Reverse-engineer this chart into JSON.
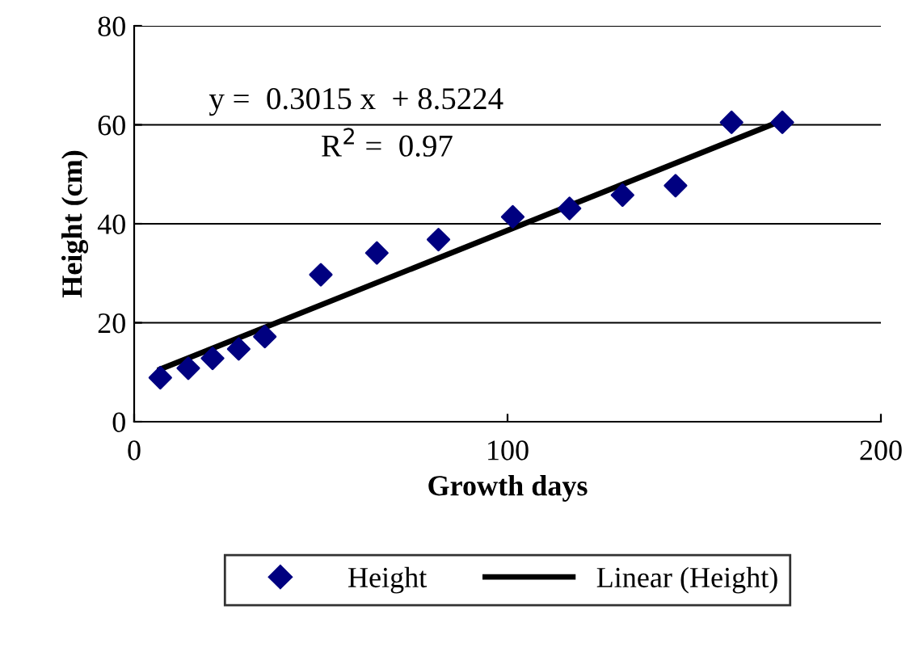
{
  "chart_data": {
    "type": "scatter",
    "xlabel": "Growth days",
    "ylabel": "Height (cm)",
    "xlim": [
      0,
      200
    ],
    "xticks": [
      0,
      100,
      200
    ],
    "ylim": [
      0,
      80
    ],
    "yticks": [
      0,
      20,
      40,
      60,
      80
    ],
    "grid": "y",
    "legend": "bottom",
    "annotations": [
      "y =  0.3015 x  + 8.5224",
      "R$^{2}$ =  0.97"
    ],
    "series": [
      {
        "name": "Height",
        "marker": "diamond",
        "color": "#000080",
        "x": [
          7,
          14.5,
          21,
          28,
          35,
          50,
          65,
          81.5,
          101.4,
          116.6,
          130.8,
          145,
          160,
          173.6
        ],
        "values": [
          8.9,
          10.8,
          12.8,
          14.7,
          17.2,
          29.7,
          34.1,
          36.8,
          41.4,
          43.1,
          45.8,
          47.7,
          60.5,
          60.5
        ]
      },
      {
        "name": "Linear (Height)",
        "type": "line",
        "color": "#000000",
        "x": [
          7,
          174
        ],
        "values": [
          10.6,
          61.0
        ]
      }
    ]
  }
}
